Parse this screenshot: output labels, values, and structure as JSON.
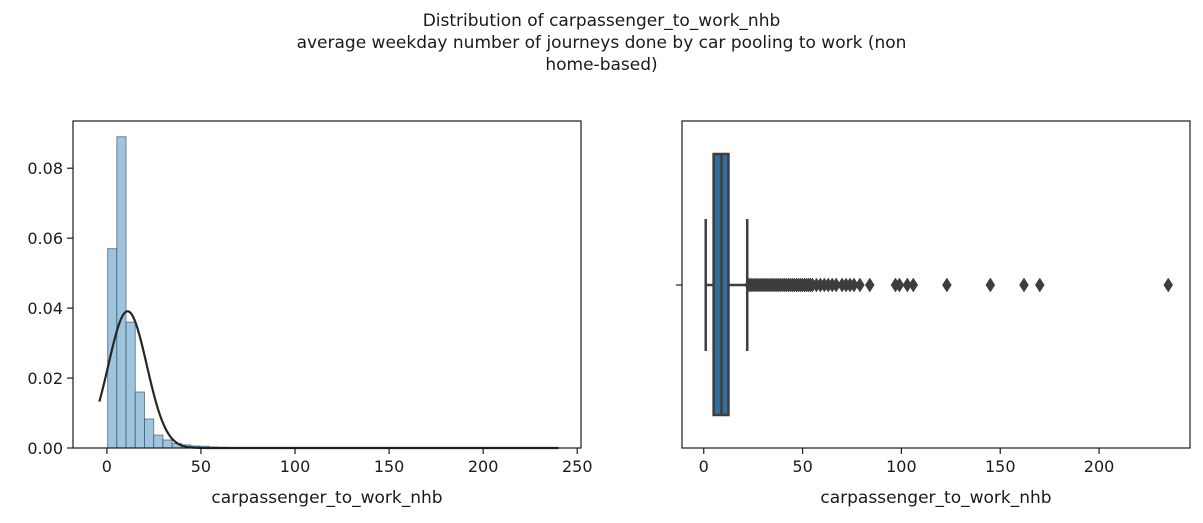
{
  "suptitle": {
    "line1": "Distribution of carpassenger_to_work_nhb",
    "line2": "average weekday number of journeys done by car pooling to work (non",
    "line3": "home-based)"
  },
  "colors": {
    "hist_fill": "#9ec4de",
    "hist_edge": "#2b4a5e",
    "kde_line": "#262626",
    "box_fill": "#2f6f9f",
    "box_line": "#3d3d3d",
    "axis": "#1a1a1a"
  },
  "chart_data": [
    {
      "type": "histogram",
      "xlabel": "carpassenger_to_work_nhb",
      "ylabel": "",
      "xlim": [
        -18,
        252
      ],
      "ylim": [
        0,
        0.0935
      ],
      "xticks": [
        0,
        50,
        100,
        150,
        200,
        250
      ],
      "yticks": [
        0.0,
        0.02,
        0.04,
        0.06,
        0.08
      ],
      "ytick_labels": [
        "0.00",
        "0.02",
        "0.04",
        "0.06",
        "0.08"
      ],
      "bin_width": 4.9,
      "bin_start": 0.4,
      "bin_densities": [
        0.057,
        0.089,
        0.036,
        0.016,
        0.0083,
        0.0037,
        0.0023,
        0.0013,
        0.0009,
        0.0006,
        0.0005,
        0.0003,
        0.0002,
        0.0001,
        0.0001,
        0.0001,
        5e-05,
        4e-05,
        3e-05,
        2e-05,
        2e-05,
        2e-05,
        1e-05,
        1e-05,
        1e-05,
        1e-05,
        1e-05,
        1e-05,
        1e-05,
        1e-05,
        1e-05,
        1e-05,
        1e-05,
        1e-05,
        1e-05,
        1e-05,
        1e-05,
        1e-05,
        1e-05,
        1e-05,
        1e-05,
        1e-05,
        1e-05,
        1e-05,
        1e-05,
        1e-05,
        1e-05,
        1e-05,
        1e-05
      ],
      "kde": {
        "mean": 11,
        "sd": 10.2,
        "x_range": [
          -4,
          240
        ]
      }
    },
    {
      "type": "boxplot",
      "xlabel": "carpassenger_to_work_nhb",
      "xlim": [
        -11,
        246
      ],
      "xticks": [
        0,
        50,
        100,
        150,
        200
      ],
      "whisker_low": 1,
      "q1": 5,
      "median": 9,
      "q3": 12.5,
      "whisker_high": 22,
      "outliers": [
        23,
        24,
        25,
        26,
        27,
        28,
        29,
        30,
        31,
        32,
        33,
        34,
        35,
        36,
        37,
        38,
        39,
        40,
        41,
        42,
        43,
        44,
        45,
        46,
        47,
        48,
        49,
        50,
        51,
        52,
        53,
        54,
        55,
        57,
        59,
        61,
        63,
        65,
        67,
        70,
        72,
        74,
        76,
        79,
        84,
        97,
        99,
        103,
        106,
        123,
        145,
        162,
        170,
        235
      ]
    }
  ]
}
